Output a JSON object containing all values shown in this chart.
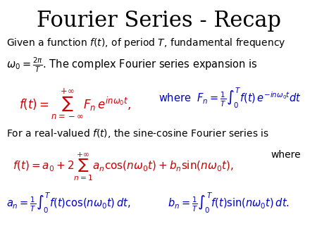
{
  "title": "Fourier Series - Recap",
  "title_fontsize": 22,
  "title_color": "#000000",
  "bg_color": "#ffffff",
  "text_color": "#000000",
  "red_color": "#cc0000",
  "blue_color": "#0000cc"
}
